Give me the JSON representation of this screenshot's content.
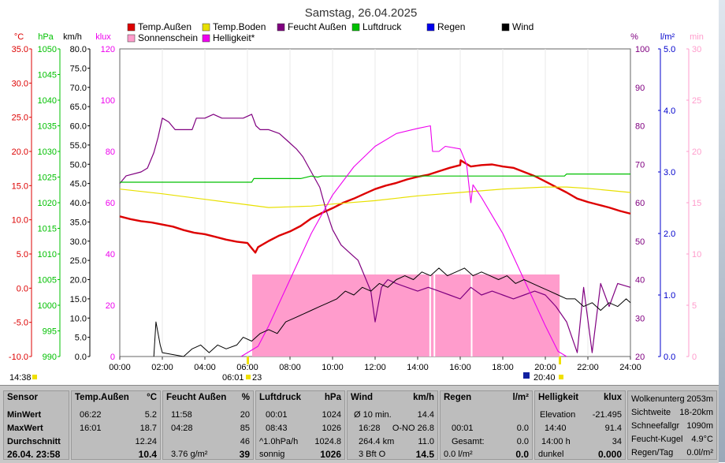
{
  "title": "Samstag, 26.04.2025",
  "colors": {
    "temp_aussen": "#dd0000",
    "temp_boden": "#e8e000",
    "sonnenschein": "#ff9ccc",
    "helligkeit": "#ee00ee",
    "feucht_aussen": "#800080",
    "luftdruck": "#00c000",
    "regen": "#0000ee",
    "wind": "#000000"
  },
  "legend": [
    {
      "label": "Temp.Außen",
      "color": "#dd0000"
    },
    {
      "label": "Temp.Boden",
      "color": "#e8e000"
    },
    {
      "label": "Feucht Außen",
      "color": "#800080"
    },
    {
      "label": "Luftdruck",
      "color": "#00c000"
    },
    {
      "label": "Regen",
      "color": "#0000ee"
    },
    {
      "label": "Wind",
      "color": "#000000"
    },
    {
      "label": "Sonnenschein",
      "color": "#ff9ccc"
    },
    {
      "label": "Helligkeit*",
      "color": "#ee00ee"
    }
  ],
  "axes": {
    "temp": {
      "label": "°C",
      "color": "#dd0000",
      "range": [
        -10,
        35
      ],
      "ticks": [
        "35.0",
        "30.0",
        "25.0",
        "20.0",
        "15.0",
        "10.0",
        "5.0",
        "0.0",
        "-5.0",
        "-10.0"
      ]
    },
    "pressure": {
      "label": "hPa",
      "color": "#00c000",
      "range": [
        990,
        1050
      ],
      "ticks": [
        "1050",
        "1045",
        "1040",
        "1035",
        "1030",
        "1025",
        "1020",
        "1015",
        "1010",
        "1005",
        "1000",
        "995",
        "990"
      ]
    },
    "wind": {
      "label": "km/h",
      "color": "#000000",
      "range": [
        0,
        80
      ],
      "ticks": [
        "80.0",
        "75.0",
        "70.0",
        "65.0",
        "60.0",
        "55.0",
        "50.0",
        "45.0",
        "40.0",
        "35.0",
        "30.0",
        "25.0",
        "20.0",
        "15.0",
        "10.0",
        "5.0",
        "0.0"
      ]
    },
    "klux": {
      "label": "klux",
      "color": "#ee00ee",
      "range": [
        0,
        120
      ],
      "ticks": [
        "120",
        "100",
        "80",
        "60",
        "40",
        "20",
        "0"
      ]
    },
    "humidity": {
      "label": "%",
      "color": "#800080",
      "range": [
        20,
        100
      ],
      "ticks": [
        "100",
        "90",
        "80",
        "70",
        "60",
        "50",
        "40",
        "30",
        "20"
      ]
    },
    "rain": {
      "label": "l/m²",
      "color": "#0000cc",
      "range": [
        0,
        5
      ],
      "ticks": [
        "5.0",
        "4.0",
        "3.0",
        "2.0",
        "1.0",
        "0.0"
      ]
    },
    "sunmin": {
      "label": "min",
      "color": "#ff9ccc",
      "range": [
        0,
        30
      ],
      "ticks": [
        "30",
        "25",
        "20",
        "15",
        "10",
        "5",
        "0"
      ]
    }
  },
  "x_ticks": [
    "00:00",
    "02:00",
    "04:00",
    "06:00",
    "08:00",
    "10:00",
    "12:00",
    "14:00",
    "16:00",
    "18:00",
    "20:00",
    "22:00",
    "24:00"
  ],
  "markers": {
    "left_time": "14:38",
    "sunrise": "06:01",
    "sunrise_min": "23",
    "sunset": "20:40"
  },
  "chart_data": {
    "type": "line",
    "x_unit": "hour",
    "x_range": [
      0,
      24
    ],
    "series": [
      {
        "name": "Temp.Außen",
        "axis": "temp",
        "points": [
          [
            0,
            10.5
          ],
          [
            0.5,
            10.1
          ],
          [
            1,
            9.8
          ],
          [
            1.5,
            9.6
          ],
          [
            2,
            9.3
          ],
          [
            2.5,
            9.0
          ],
          [
            3,
            8.5
          ],
          [
            3.5,
            8.1
          ],
          [
            4,
            7.9
          ],
          [
            4.5,
            7.5
          ],
          [
            5,
            7.1
          ],
          [
            5.5,
            6.8
          ],
          [
            6,
            6.6
          ],
          [
            6.37,
            5.2
          ],
          [
            6.5,
            6.0
          ],
          [
            7,
            6.9
          ],
          [
            7.5,
            7.7
          ],
          [
            8,
            8.3
          ],
          [
            8.5,
            9.1
          ],
          [
            9,
            10.2
          ],
          [
            9.5,
            11.0
          ],
          [
            10,
            11.7
          ],
          [
            10.5,
            12.5
          ],
          [
            11,
            13.1
          ],
          [
            11.5,
            13.8
          ],
          [
            12,
            14.5
          ],
          [
            12.5,
            15.0
          ],
          [
            13,
            15.4
          ],
          [
            13.5,
            15.9
          ],
          [
            14,
            16.3
          ],
          [
            14.5,
            16.6
          ],
          [
            15,
            17.1
          ],
          [
            15.5,
            17.6
          ],
          [
            16,
            18.0
          ],
          [
            16.02,
            18.7
          ],
          [
            16.5,
            17.8
          ],
          [
            17,
            18.0
          ],
          [
            17.5,
            18.1
          ],
          [
            18,
            17.8
          ],
          [
            18.5,
            17.6
          ],
          [
            19,
            17.0
          ],
          [
            19.5,
            16.4
          ],
          [
            20,
            15.6
          ],
          [
            20.5,
            14.8
          ],
          [
            21,
            14.0
          ],
          [
            21.5,
            13.1
          ],
          [
            22,
            12.6
          ],
          [
            22.5,
            12.2
          ],
          [
            23,
            11.8
          ],
          [
            23.5,
            11.3
          ],
          [
            24,
            10.9
          ]
        ]
      },
      {
        "name": "Temp.Boden",
        "axis": "temp",
        "points": [
          [
            0,
            14.5
          ],
          [
            2,
            13.8
          ],
          [
            4,
            13.0
          ],
          [
            6,
            12.2
          ],
          [
            7,
            11.8
          ],
          [
            8,
            11.9
          ],
          [
            9,
            12.0
          ],
          [
            10,
            12.3
          ],
          [
            12,
            12.8
          ],
          [
            14,
            13.5
          ],
          [
            16,
            14.0
          ],
          [
            18,
            14.5
          ],
          [
            20,
            14.8
          ],
          [
            21,
            14.8
          ],
          [
            22,
            14.6
          ],
          [
            24,
            14.0
          ]
        ]
      },
      {
        "name": "Feucht Außen",
        "axis": "humidity",
        "points": [
          [
            0,
            65
          ],
          [
            0.3,
            67
          ],
          [
            1.0,
            68
          ],
          [
            1.3,
            69
          ],
          [
            1.6,
            73
          ],
          [
            1.8,
            77
          ],
          [
            2.0,
            82
          ],
          [
            2.3,
            81
          ],
          [
            2.6,
            79
          ],
          [
            3.0,
            79
          ],
          [
            3.4,
            79
          ],
          [
            3.6,
            82
          ],
          [
            4.0,
            82
          ],
          [
            4.4,
            83
          ],
          [
            4.8,
            82
          ],
          [
            5.2,
            82
          ],
          [
            5.8,
            82
          ],
          [
            6.2,
            83
          ],
          [
            6.4,
            80
          ],
          [
            6.6,
            79
          ],
          [
            7.0,
            79
          ],
          [
            7.5,
            78
          ],
          [
            7.9,
            76
          ],
          [
            8.3,
            74
          ],
          [
            8.6,
            72
          ],
          [
            9.0,
            68
          ],
          [
            9.4,
            64
          ],
          [
            9.7,
            58
          ],
          [
            10.0,
            53
          ],
          [
            10.4,
            49
          ],
          [
            10.8,
            47
          ],
          [
            11.2,
            45
          ],
          [
            11.5,
            41
          ],
          [
            11.8,
            37
          ],
          [
            12.0,
            29
          ],
          [
            12.3,
            38
          ],
          [
            12.6,
            40
          ],
          [
            13.0,
            39
          ],
          [
            13.5,
            38
          ],
          [
            14.0,
            37
          ],
          [
            14.5,
            38
          ],
          [
            15.0,
            37
          ],
          [
            15.5,
            36
          ],
          [
            16.0,
            35
          ],
          [
            16.5,
            38
          ],
          [
            17.0,
            36
          ],
          [
            17.5,
            37
          ],
          [
            18.0,
            36
          ],
          [
            18.5,
            35
          ],
          [
            19.0,
            36
          ],
          [
            19.5,
            37
          ],
          [
            20.0,
            36
          ],
          [
            20.5,
            33
          ],
          [
            21.0,
            29
          ],
          [
            21.5,
            21
          ],
          [
            21.8,
            38
          ],
          [
            22.2,
            21
          ],
          [
            22.6,
            39
          ],
          [
            23.0,
            33
          ],
          [
            23.4,
            39
          ],
          [
            24.0,
            38
          ]
        ]
      },
      {
        "name": "Luftdruck",
        "axis": "pressure",
        "points": [
          [
            0,
            1024
          ],
          [
            6.2,
            1024
          ],
          [
            6.3,
            1024.7
          ],
          [
            8.5,
            1024.7
          ],
          [
            9.0,
            1025.2
          ],
          [
            9.3,
            1025.0
          ],
          [
            9.5,
            1025.2
          ],
          [
            20.9,
            1025.2
          ],
          [
            21.0,
            1025.6
          ],
          [
            24,
            1025.6
          ]
        ]
      },
      {
        "name": "Helligkeit*",
        "axis": "klux",
        "points": [
          [
            5.7,
            0
          ],
          [
            6.5,
            4
          ],
          [
            7,
            12
          ],
          [
            8,
            30
          ],
          [
            9,
            48
          ],
          [
            10,
            63
          ],
          [
            11,
            74
          ],
          [
            12,
            82
          ],
          [
            13,
            87
          ],
          [
            14,
            89
          ],
          [
            14.6,
            90
          ],
          [
            14.7,
            80
          ],
          [
            15,
            80
          ],
          [
            15.3,
            82
          ],
          [
            16,
            81
          ],
          [
            16.3,
            75
          ],
          [
            16.5,
            60
          ],
          [
            16.6,
            67
          ],
          [
            17,
            62
          ],
          [
            18,
            48
          ],
          [
            19,
            30
          ],
          [
            20,
            12
          ],
          [
            20.6,
            2
          ],
          [
            21,
            0
          ]
        ]
      },
      {
        "name": "Wind",
        "axis": "wind",
        "points": [
          [
            1.6,
            0
          ],
          [
            1.7,
            9
          ],
          [
            1.8,
            6
          ],
          [
            1.9,
            3
          ],
          [
            2.0,
            1
          ],
          [
            3.0,
            0
          ],
          [
            3.4,
            2
          ],
          [
            3.8,
            3
          ],
          [
            4.2,
            1
          ],
          [
            4.6,
            3
          ],
          [
            5.0,
            2
          ],
          [
            5.5,
            3
          ],
          [
            5.8,
            5
          ],
          [
            6.2,
            4
          ],
          [
            6.6,
            6
          ],
          [
            7.0,
            7
          ],
          [
            7.4,
            6
          ],
          [
            7.8,
            9
          ],
          [
            8.2,
            10
          ],
          [
            8.6,
            11
          ],
          [
            9.0,
            12
          ],
          [
            9.4,
            13
          ],
          [
            9.8,
            14
          ],
          [
            10.2,
            15
          ],
          [
            10.6,
            17
          ],
          [
            11.0,
            16
          ],
          [
            11.4,
            18
          ],
          [
            11.8,
            17
          ],
          [
            12.2,
            19
          ],
          [
            12.6,
            18
          ],
          [
            13.0,
            20
          ],
          [
            13.4,
            21
          ],
          [
            13.8,
            20
          ],
          [
            14.2,
            22
          ],
          [
            14.6,
            21
          ],
          [
            15.0,
            23
          ],
          [
            15.4,
            21
          ],
          [
            15.8,
            22
          ],
          [
            16.2,
            23
          ],
          [
            16.6,
            21
          ],
          [
            17.0,
            22
          ],
          [
            17.4,
            21
          ],
          [
            17.8,
            20
          ],
          [
            18.2,
            21
          ],
          [
            18.6,
            19
          ],
          [
            19.0,
            20
          ],
          [
            19.4,
            19
          ],
          [
            19.8,
            18
          ],
          [
            20.2,
            17
          ],
          [
            20.6,
            16
          ],
          [
            21.0,
            15
          ],
          [
            21.4,
            15
          ],
          [
            21.8,
            13
          ],
          [
            22.2,
            14
          ],
          [
            22.6,
            12
          ],
          [
            23.0,
            14
          ],
          [
            23.4,
            13
          ],
          [
            23.8,
            15
          ],
          [
            24.0,
            14
          ]
        ]
      }
    ],
    "sunshine_blocks": {
      "axis": "sunmin",
      "from": 6.22,
      "to": 20.67,
      "value": 8,
      "gaps": [
        14.55,
        14.75,
        16.5
      ]
    }
  },
  "stats": {
    "sensor": {
      "header": "Sensor",
      "rows": [
        "MinWert",
        "MaxWert",
        "Durchschnitt"
      ],
      "date": "26.04. 23:58"
    },
    "temp": {
      "header": "Temp.Außen",
      "unit": "°C",
      "min_time": "06:22",
      "min": "5.2",
      "max_time": "16:01",
      "max": "18.7",
      "avg": "12.24",
      "current": "10.4"
    },
    "humidity": {
      "header": "Feucht Außen",
      "unit": "%",
      "min_time": "11:58",
      "min": "20",
      "max_time": "04:28",
      "max": "85",
      "avg": "46",
      "abs": "3.76 g/m²",
      "current": "39"
    },
    "pressure": {
      "header": "Luftdruck",
      "unit": "hPa",
      "min_time": "00:01",
      "min": "1024",
      "max_time": "08:43",
      "max": "1026",
      "trend_label": "^1.0hPa/h",
      "avg": "1024.8",
      "weather": "sonnig",
      "current": "1026"
    },
    "wind": {
      "header": "Wind",
      "unit": "km/h",
      "row1_label": "Ø 10 min.",
      "row1_val": "14.4",
      "row2_time": "16:28",
      "row2_dir": "O-NO 26.8",
      "row3_label": "264.4 km",
      "row3_val": "11.0",
      "bft": "3 Bft O",
      "current": "14.5"
    },
    "rain": {
      "header": "Regen",
      "unit": "l/m²",
      "row2_time": "00:01",
      "row2_val": "0.0",
      "total_label": "Gesamt:",
      "total_val": "0.0",
      "today": "0.0 l/m²",
      "current": "0.0",
      "row1_val": "0.0"
    },
    "light": {
      "header": "Helligkeit",
      "unit": "klux",
      "elev_label": "Elevation",
      "elev_val": "-21.495",
      "max_time": "14:40",
      "max_val": "91.4",
      "sun_label": "14:00 h",
      "sun_val": "34",
      "state": "dunkel",
      "current": "0.000"
    },
    "extra": {
      "rows": [
        {
          "label": "Wolkenunterg",
          "value": "2053m"
        },
        {
          "label": "Sichtweite",
          "value": "18-20km"
        },
        {
          "label": "Schneefallgr",
          "value": "1090m"
        },
        {
          "label": "Feucht-Kugel",
          "value": "4.9°C"
        },
        {
          "label": "Regen/Tag",
          "value": "0.0l/m²"
        }
      ]
    }
  }
}
